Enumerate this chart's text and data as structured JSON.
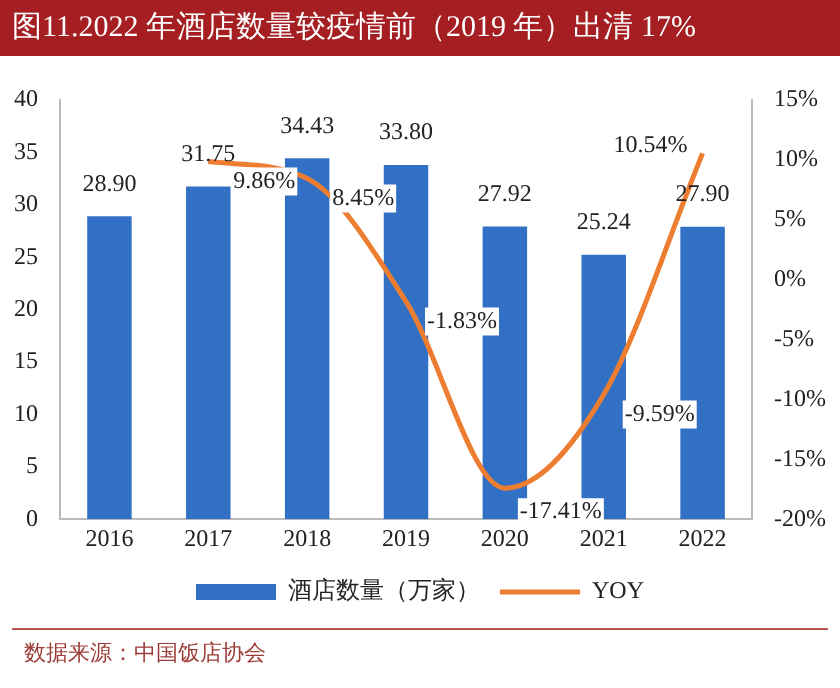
{
  "chart_data": {
    "type": "bar",
    "title": "图11.2022 年酒店数量较疫情前（2019 年）出清 17%",
    "categories": [
      "2016",
      "2017",
      "2018",
      "2019",
      "2020",
      "2021",
      "2022"
    ],
    "series": [
      {
        "name": "酒店数量（万家）",
        "color": "#3170c4",
        "values": [
          28.9,
          31.75,
          34.43,
          33.8,
          27.92,
          25.24,
          27.9
        ],
        "value_labels": [
          "28.90",
          "31.75",
          "34.43",
          "33.80",
          "27.92",
          "25.24",
          "27.90"
        ]
      },
      {
        "name": "YOY",
        "type": "line",
        "axis": "y2",
        "color": "#ed7d31",
        "values": [
          null,
          9.86,
          8.45,
          -1.83,
          -17.41,
          -9.59,
          10.54
        ],
        "value_labels": [
          null,
          "9.86%",
          "8.45%",
          "-1.83%",
          "-17.41%",
          "-9.59%",
          "10.54%"
        ]
      }
    ],
    "ylim": [
      0,
      40
    ],
    "yticks": [
      0,
      5,
      10,
      15,
      20,
      25,
      30,
      35,
      40
    ],
    "y2lim": [
      -20,
      15
    ],
    "y2ticks": [
      {
        "value": -20,
        "label": "-20%"
      },
      {
        "value": -15,
        "label": "-15%"
      },
      {
        "value": -10,
        "label": "-10%"
      },
      {
        "value": -5,
        "label": "-5%"
      },
      {
        "value": 0,
        "label": "0%"
      },
      {
        "value": 5,
        "label": "5%"
      },
      {
        "value": 10,
        "label": "10%"
      },
      {
        "value": 15,
        "label": "15%"
      }
    ],
    "grid": false,
    "legend": "bottom",
    "marker": "none",
    "line_style": "solid",
    "annotations": [
      "数据来源：中国饭店协会"
    ]
  }
}
